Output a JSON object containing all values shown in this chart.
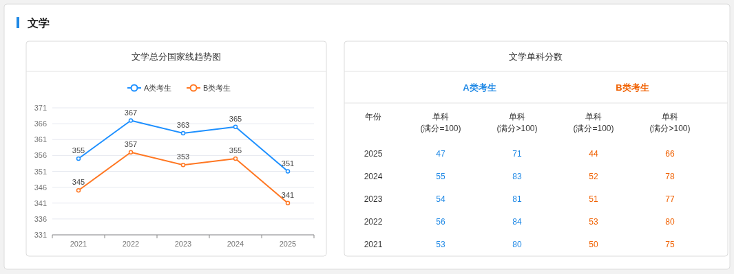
{
  "chart_data": [
    {
      "type": "line",
      "title": "文学",
      "subtitle": "文学总分国家线趋势图",
      "categories": [
        "2021",
        "2022",
        "2023",
        "2024",
        "2025"
      ],
      "series": [
        {
          "name": "A类考生",
          "color": "#1e90ff",
          "values": [
            355,
            367,
            363,
            365,
            351
          ]
        },
        {
          "name": "B类考生",
          "color": "#ff7722",
          "values": [
            345,
            357,
            353,
            355,
            341
          ]
        }
      ],
      "ylim": [
        331,
        371
      ],
      "yticks": [
        331,
        336,
        341,
        346,
        351,
        356,
        361,
        366,
        371
      ],
      "grid": "y",
      "legend": "top",
      "marker": "circle",
      "data_labels": true
    },
    {
      "type": "heatmap",
      "title": "文学单科分数",
      "ylabel": "年份",
      "annotations": [
        "A类考生",
        "B类考生"
      ],
      "categories": [
        "单科 (满分=100)",
        "单科 (满分>100)",
        "单科 (满分=100)",
        "单科 (满分>100)"
      ],
      "colors": [
        "#1e88e5",
        "#1e88e5",
        "#f06000",
        "#f06000"
      ],
      "y_categories": [
        "2025",
        "2024",
        "2023",
        "2022",
        "2021"
      ],
      "cells": [
        [
          47,
          71,
          44,
          66
        ],
        [
          55,
          83,
          52,
          78
        ],
        [
          54,
          81,
          51,
          77
        ],
        [
          56,
          84,
          53,
          80
        ],
        [
          53,
          80,
          50,
          75
        ]
      ],
      "data_labels": true
    }
  ]
}
